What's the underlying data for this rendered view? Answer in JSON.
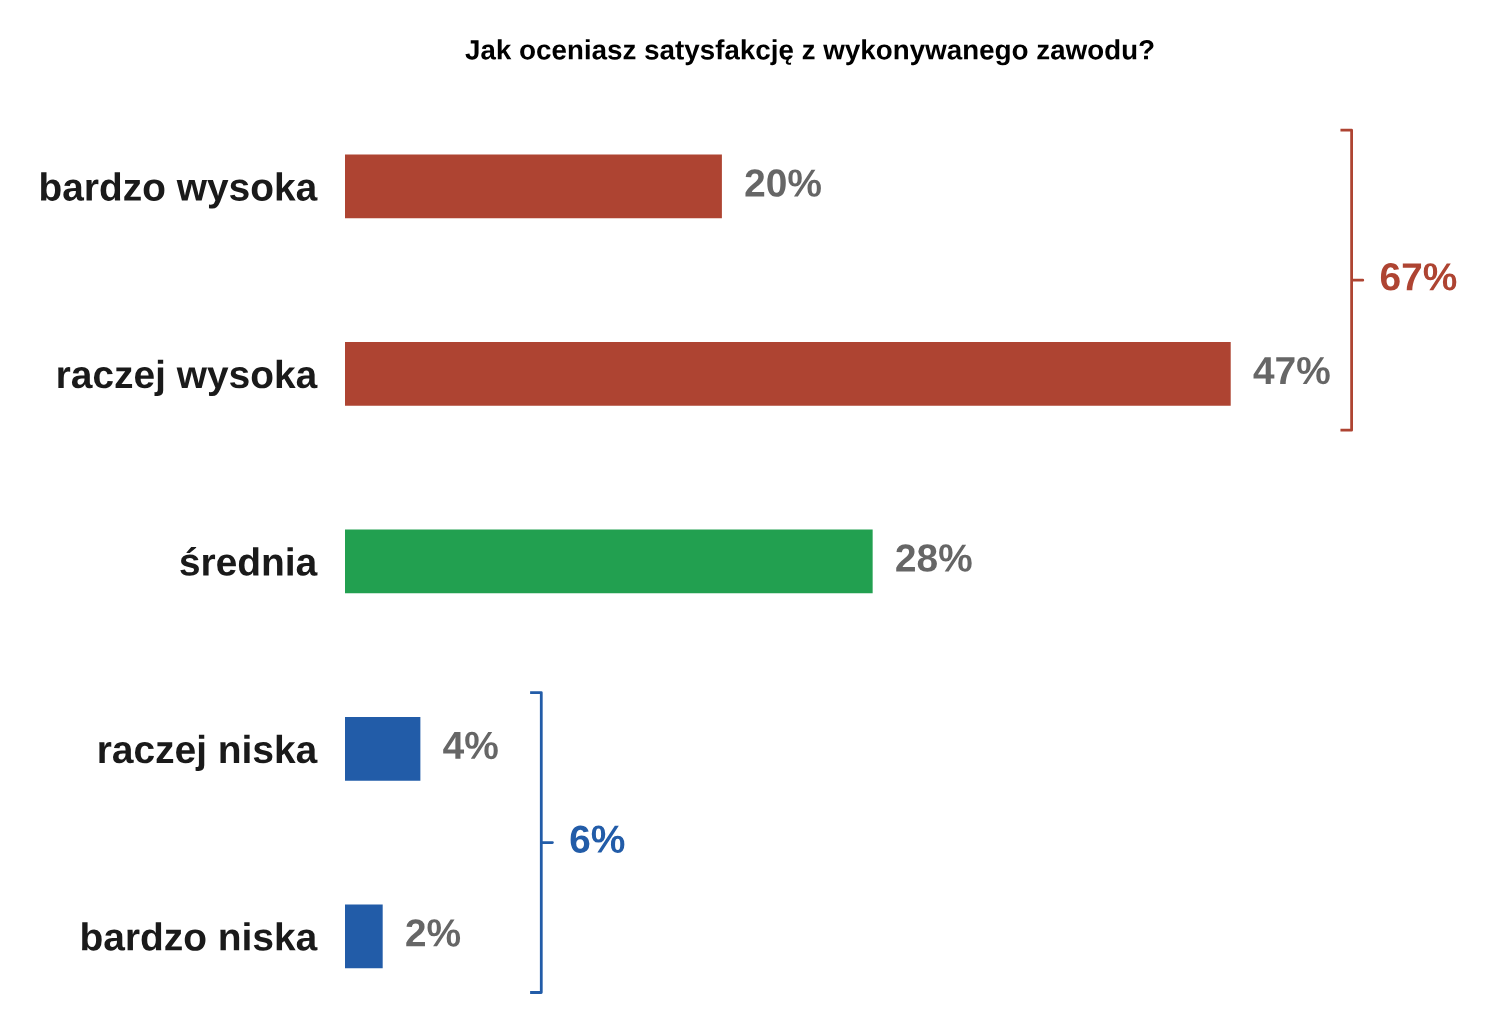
{
  "chart_data": {
    "type": "bar",
    "orientation": "horizontal",
    "title": "Jak oceniasz satysfakcję z wykonywanego zawodu?",
    "categories": [
      "bardzo wysoka",
      "raczej wysoka",
      "średnia",
      "raczej niska",
      "bardzo niska"
    ],
    "values": [
      20,
      47,
      28,
      4,
      2
    ],
    "colors": [
      "#ae4432",
      "#ae4432",
      "#22a050",
      "#225ca8",
      "#225ca8"
    ],
    "value_labels": [
      "20%",
      "47%",
      "28%",
      "4%",
      "2%"
    ],
    "annotations": [
      "67%",
      "6%"
    ],
    "grid": false,
    "legend": false
  }
}
